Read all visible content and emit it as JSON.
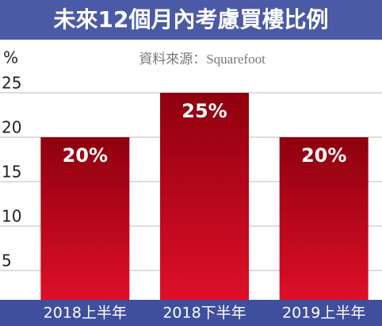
{
  "chart_data": {
    "type": "bar",
    "title": "未來12個月內考慮買樓比例",
    "subtitle": "資料來源：Squarefoot",
    "y_label": "%",
    "categories": [
      "2018上半年",
      "2018下半年",
      "2019上半年"
    ],
    "values": [
      20,
      25,
      20
    ],
    "value_labels": [
      "20%",
      "25%",
      "20%"
    ],
    "color": "#c8061f",
    "ylim": [
      0,
      25
    ],
    "yticks": [
      5,
      10,
      15,
      20,
      25
    ],
    "grid": true
  }
}
